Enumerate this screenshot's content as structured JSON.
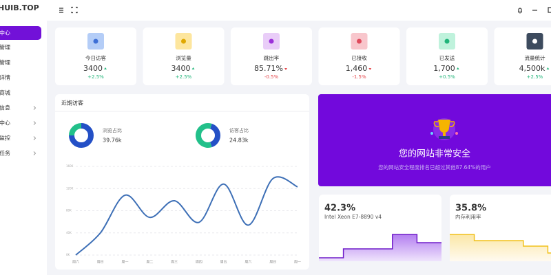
{
  "brand": "HUIB.TOP",
  "sidebar": {
    "items": [
      "中心",
      "管理",
      "管理",
      "详情",
      "商城",
      "信息",
      "中心",
      "监控",
      "任务"
    ]
  },
  "stats": [
    {
      "label": "今日访客",
      "value": "3400",
      "change": "+2.5%"
    },
    {
      "label": "浏览量",
      "value": "3400",
      "change": "+2.5%"
    },
    {
      "label": "跳出率",
      "value": "85.71%",
      "change": "-0.5%"
    },
    {
      "label": "已接收",
      "value": "1,460",
      "change": "-1.5%"
    },
    {
      "label": "已发送",
      "value": "1,700",
      "change": "+0.5%"
    },
    {
      "label": "流量统计",
      "value": "4,500k",
      "change": "+2.5%"
    }
  ],
  "visitors": {
    "title": "近期访客",
    "donuts": [
      {
        "label": "浏览占比",
        "value": "39.76k",
        "segments": [
          75,
          25
        ]
      },
      {
        "label": "访客占比",
        "value": "24.83k",
        "segments": [
          40,
          60
        ]
      }
    ]
  },
  "chart_data": {
    "type": "line",
    "categories": [
      "周六",
      "周日",
      "周一",
      "周二",
      "周三",
      "周四",
      "周五",
      "周六",
      "周日",
      "周一"
    ],
    "values": [
      0,
      40000,
      108000,
      68000,
      98000,
      59000,
      128000,
      54000,
      138000,
      123000
    ],
    "color": "#3d6fb6",
    "ylim": [
      0,
      160000
    ],
    "yticks": [
      {
        "value": 0,
        "label": "0K"
      },
      {
        "value": 40000,
        "label": "40K"
      },
      {
        "value": 80000,
        "label": "80K"
      },
      {
        "value": 120000,
        "label": "120K"
      },
      {
        "value": 160000,
        "label": "160K"
      }
    ],
    "grid": true
  },
  "banner": {
    "title": "您的网站非常安全",
    "text": "您的网站安全程度排名已超过其他87.64%的用户"
  },
  "cpu": {
    "value": "42.3%",
    "label": "Intel Xeon E7-8890 v4",
    "ylim": [
      0,
      50
    ],
    "steps": [
      5,
      18,
      18,
      39,
      27
    ]
  },
  "memory": {
    "value": "35.8%",
    "label": "内存利用率",
    "ylim": [
      0,
      50
    ],
    "steps": [
      39,
      30,
      30,
      22,
      12
    ]
  }
}
